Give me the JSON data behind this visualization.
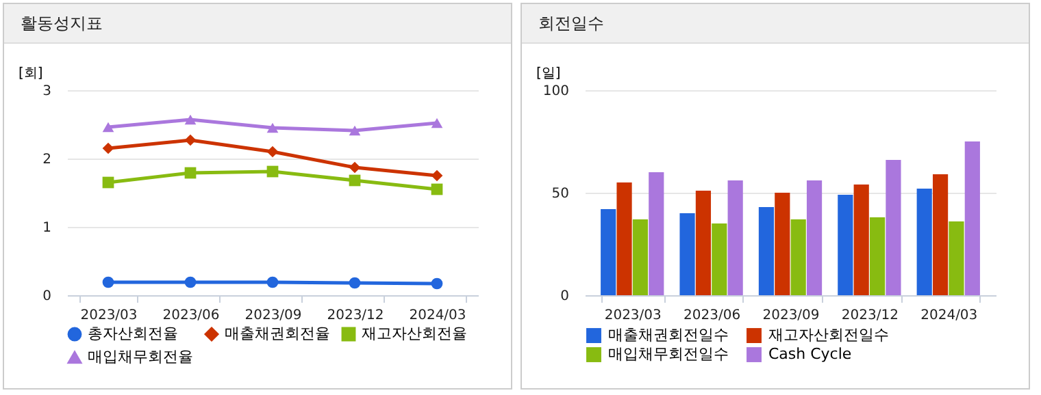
{
  "chart_data": [
    {
      "type": "line",
      "title": "활동성지표",
      "ylabel": "[회]",
      "categories": [
        "2023/03",
        "2023/06",
        "2023/09",
        "2023/12",
        "2024/03"
      ],
      "ylim": [
        0,
        3
      ],
      "yticks": [
        0,
        1,
        2,
        3
      ],
      "grid": "y",
      "legend": "bottom",
      "line_style": "solid",
      "series": [
        {
          "name": "총자산회전율",
          "color": "#2266dd",
          "marker": "circle",
          "values": [
            0.19,
            0.19,
            0.19,
            0.18,
            0.17
          ]
        },
        {
          "name": "매출채권회전율",
          "color": "#cc3300",
          "marker": "diamond",
          "values": [
            2.15,
            2.27,
            2.1,
            1.87,
            1.75
          ]
        },
        {
          "name": "재고자산회전율",
          "color": "#88bb11",
          "marker": "square",
          "values": [
            1.65,
            1.79,
            1.81,
            1.68,
            1.55
          ]
        },
        {
          "name": "매입채무회전율",
          "color": "#aa77dd",
          "marker": "triangle",
          "values": [
            2.46,
            2.57,
            2.45,
            2.41,
            2.52
          ]
        }
      ]
    },
    {
      "type": "bar",
      "title": "회전일수",
      "ylabel": "[일]",
      "categories": [
        "2023/03",
        "2023/06",
        "2023/09",
        "2023/12",
        "2024/03"
      ],
      "ylim": [
        0,
        100
      ],
      "yticks": [
        0,
        50,
        100
      ],
      "grid": "y",
      "legend": "bottom",
      "series": [
        {
          "name": "매출채권회전일수",
          "color": "#2266dd",
          "values": [
            42,
            40,
            43,
            49,
            52
          ]
        },
        {
          "name": "재고자산회전일수",
          "color": "#cc3300",
          "values": [
            55,
            51,
            50,
            54,
            59
          ]
        },
        {
          "name": "매입채무회전일수",
          "color": "#88bb11",
          "values": [
            37,
            35,
            37,
            38,
            36
          ]
        },
        {
          "name": "Cash Cycle",
          "color": "#aa77dd",
          "values": [
            60,
            56,
            56,
            66,
            75
          ]
        }
      ]
    }
  ]
}
